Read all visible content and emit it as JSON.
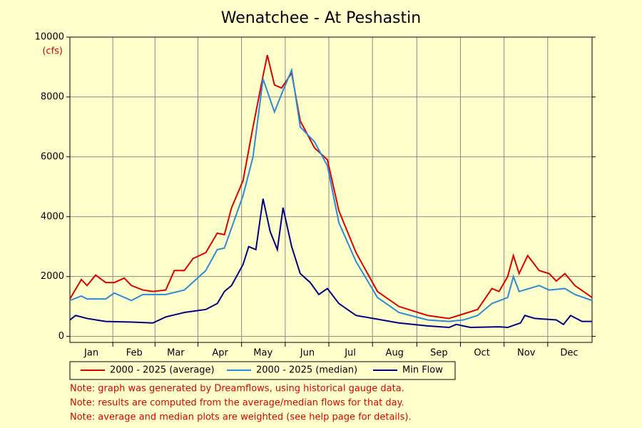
{
  "chart_data": {
    "type": "line",
    "title": "Wenatchee - At Peshastin",
    "y_unit": "(cfs)",
    "xlim": [
      0,
      365
    ],
    "xticks": [
      {
        "value": 15,
        "label": "Jan"
      },
      {
        "value": 45,
        "label": "Feb"
      },
      {
        "value": 74,
        "label": "Mar"
      },
      {
        "value": 105,
        "label": "Apr"
      },
      {
        "value": 135,
        "label": "May"
      },
      {
        "value": 166,
        "label": "Jun"
      },
      {
        "value": 196,
        "label": "Jul"
      },
      {
        "value": 227,
        "label": "Aug"
      },
      {
        "value": 258,
        "label": "Sep"
      },
      {
        "value": 288,
        "label": "Oct"
      },
      {
        "value": 319,
        "label": "Nov"
      },
      {
        "value": 349,
        "label": "Dec"
      }
    ],
    "ylim": [
      -200,
      10000
    ],
    "yticks": [
      0,
      2000,
      4000,
      6000,
      8000,
      10000
    ],
    "grid": true,
    "series": [
      {
        "name": "2000 - 2025 (average)",
        "color": "#dd0000",
        "x": [
          0,
          8,
          12,
          18,
          25,
          31,
          38,
          43,
          51,
          58,
          67,
          73,
          80,
          86,
          95,
          103,
          108,
          113,
          121,
          128,
          135,
          138,
          143,
          148,
          155,
          161,
          171,
          180,
          188,
          200,
          215,
          230,
          250,
          265,
          275,
          285,
          295,
          300,
          306,
          310,
          314,
          320,
          328,
          335,
          340,
          346,
          353,
          365
        ],
        "values": [
          1250,
          1900,
          1700,
          2050,
          1800,
          1800,
          1950,
          1700,
          1550,
          1500,
          1550,
          2200,
          2200,
          2600,
          2800,
          3450,
          3400,
          4300,
          5200,
          7000,
          8700,
          9400,
          8400,
          8300,
          8800,
          7200,
          6300,
          5900,
          4200,
          2800,
          1500,
          1000,
          700,
          600,
          750,
          900,
          1600,
          1500,
          2000,
          2700,
          2100,
          2700,
          2200,
          2100,
          1850,
          2100,
          1700,
          1300
        ]
      },
      {
        "name": "2000 - 2025 (median)",
        "color": "#2a8ad8",
        "x": [
          0,
          8,
          12,
          25,
          31,
          43,
          51,
          67,
          80,
          95,
          103,
          108,
          121,
          128,
          135,
          143,
          148,
          155,
          161,
          171,
          180,
          188,
          200,
          215,
          230,
          250,
          265,
          275,
          285,
          295,
          306,
          310,
          314,
          328,
          335,
          346,
          353,
          365
        ],
        "values": [
          1200,
          1350,
          1250,
          1250,
          1450,
          1200,
          1400,
          1400,
          1550,
          2200,
          2900,
          2950,
          4700,
          6000,
          8600,
          7500,
          8100,
          8900,
          7000,
          6500,
          5700,
          3800,
          2500,
          1300,
          800,
          550,
          500,
          550,
          700,
          1100,
          1300,
          2000,
          1500,
          1700,
          1550,
          1600,
          1400,
          1200
        ]
      },
      {
        "name": "Min Flow",
        "color": "#000080",
        "x": [
          0,
          4,
          12,
          25,
          43,
          58,
          67,
          80,
          95,
          103,
          108,
          113,
          121,
          125,
          130,
          135,
          140,
          145,
          149,
          155,
          161,
          168,
          174,
          180,
          188,
          200,
          230,
          250,
          265,
          270,
          280,
          300,
          306,
          315,
          318,
          325,
          340,
          345,
          350,
          358,
          365
        ],
        "values": [
          550,
          700,
          600,
          500,
          480,
          450,
          650,
          800,
          900,
          1100,
          1500,
          1700,
          2400,
          3000,
          2900,
          4600,
          3500,
          2900,
          4300,
          3000,
          2100,
          1800,
          1400,
          1600,
          1100,
          700,
          450,
          350,
          300,
          400,
          300,
          320,
          300,
          450,
          700,
          600,
          550,
          400,
          700,
          500,
          500
        ]
      }
    ],
    "notes": [
      "Note: graph was generated by Dreamflows, using historical gauge data.",
      "Note: results are computed from the average/median flows for that day.",
      "Note: average and median plots are weighted (see help page for details)."
    ]
  }
}
